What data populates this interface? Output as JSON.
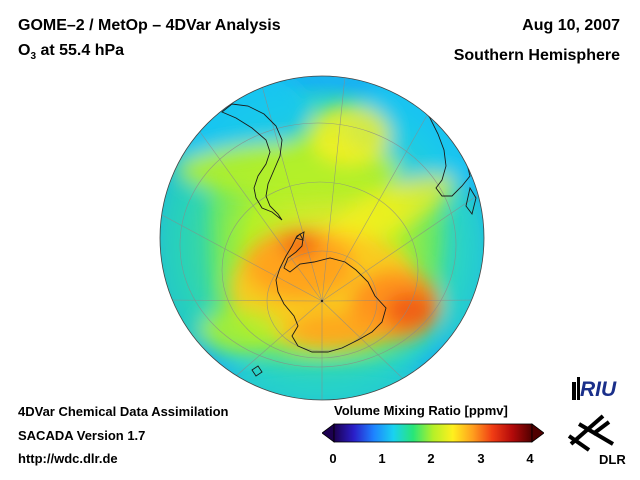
{
  "header": {
    "title": "GOME–2 / MetOp – 4DVar Analysis",
    "species_prefix": "O",
    "species_subscript": "3",
    "species_suffix": " at 55.4 hPa",
    "date": "Aug 10, 2007",
    "hemisphere": "Southern Hemisphere"
  },
  "footer": {
    "line1": "4DVar Chemical Data Assimilation",
    "line2": "SACADA Version 1.7",
    "line3": "http://wdc.dlr.de"
  },
  "colorbar": {
    "title": "Volume Mixing Ratio [ppmv]",
    "ticks": [
      "0",
      "1",
      "2",
      "3",
      "4"
    ],
    "range": [
      0,
      4
    ],
    "colors": [
      "#1c0050",
      "#2a1ec8",
      "#1e82ff",
      "#19d2f0",
      "#28e678",
      "#b4f028",
      "#fff01e",
      "#ffa01e",
      "#f03c14",
      "#b40a0a",
      "#500000"
    ]
  },
  "logos": {
    "riu": "RIU",
    "dlr": "DLR"
  },
  "map": {
    "projection": "orthographic",
    "pole": "south",
    "field": "ozone volume mixing ratio"
  }
}
